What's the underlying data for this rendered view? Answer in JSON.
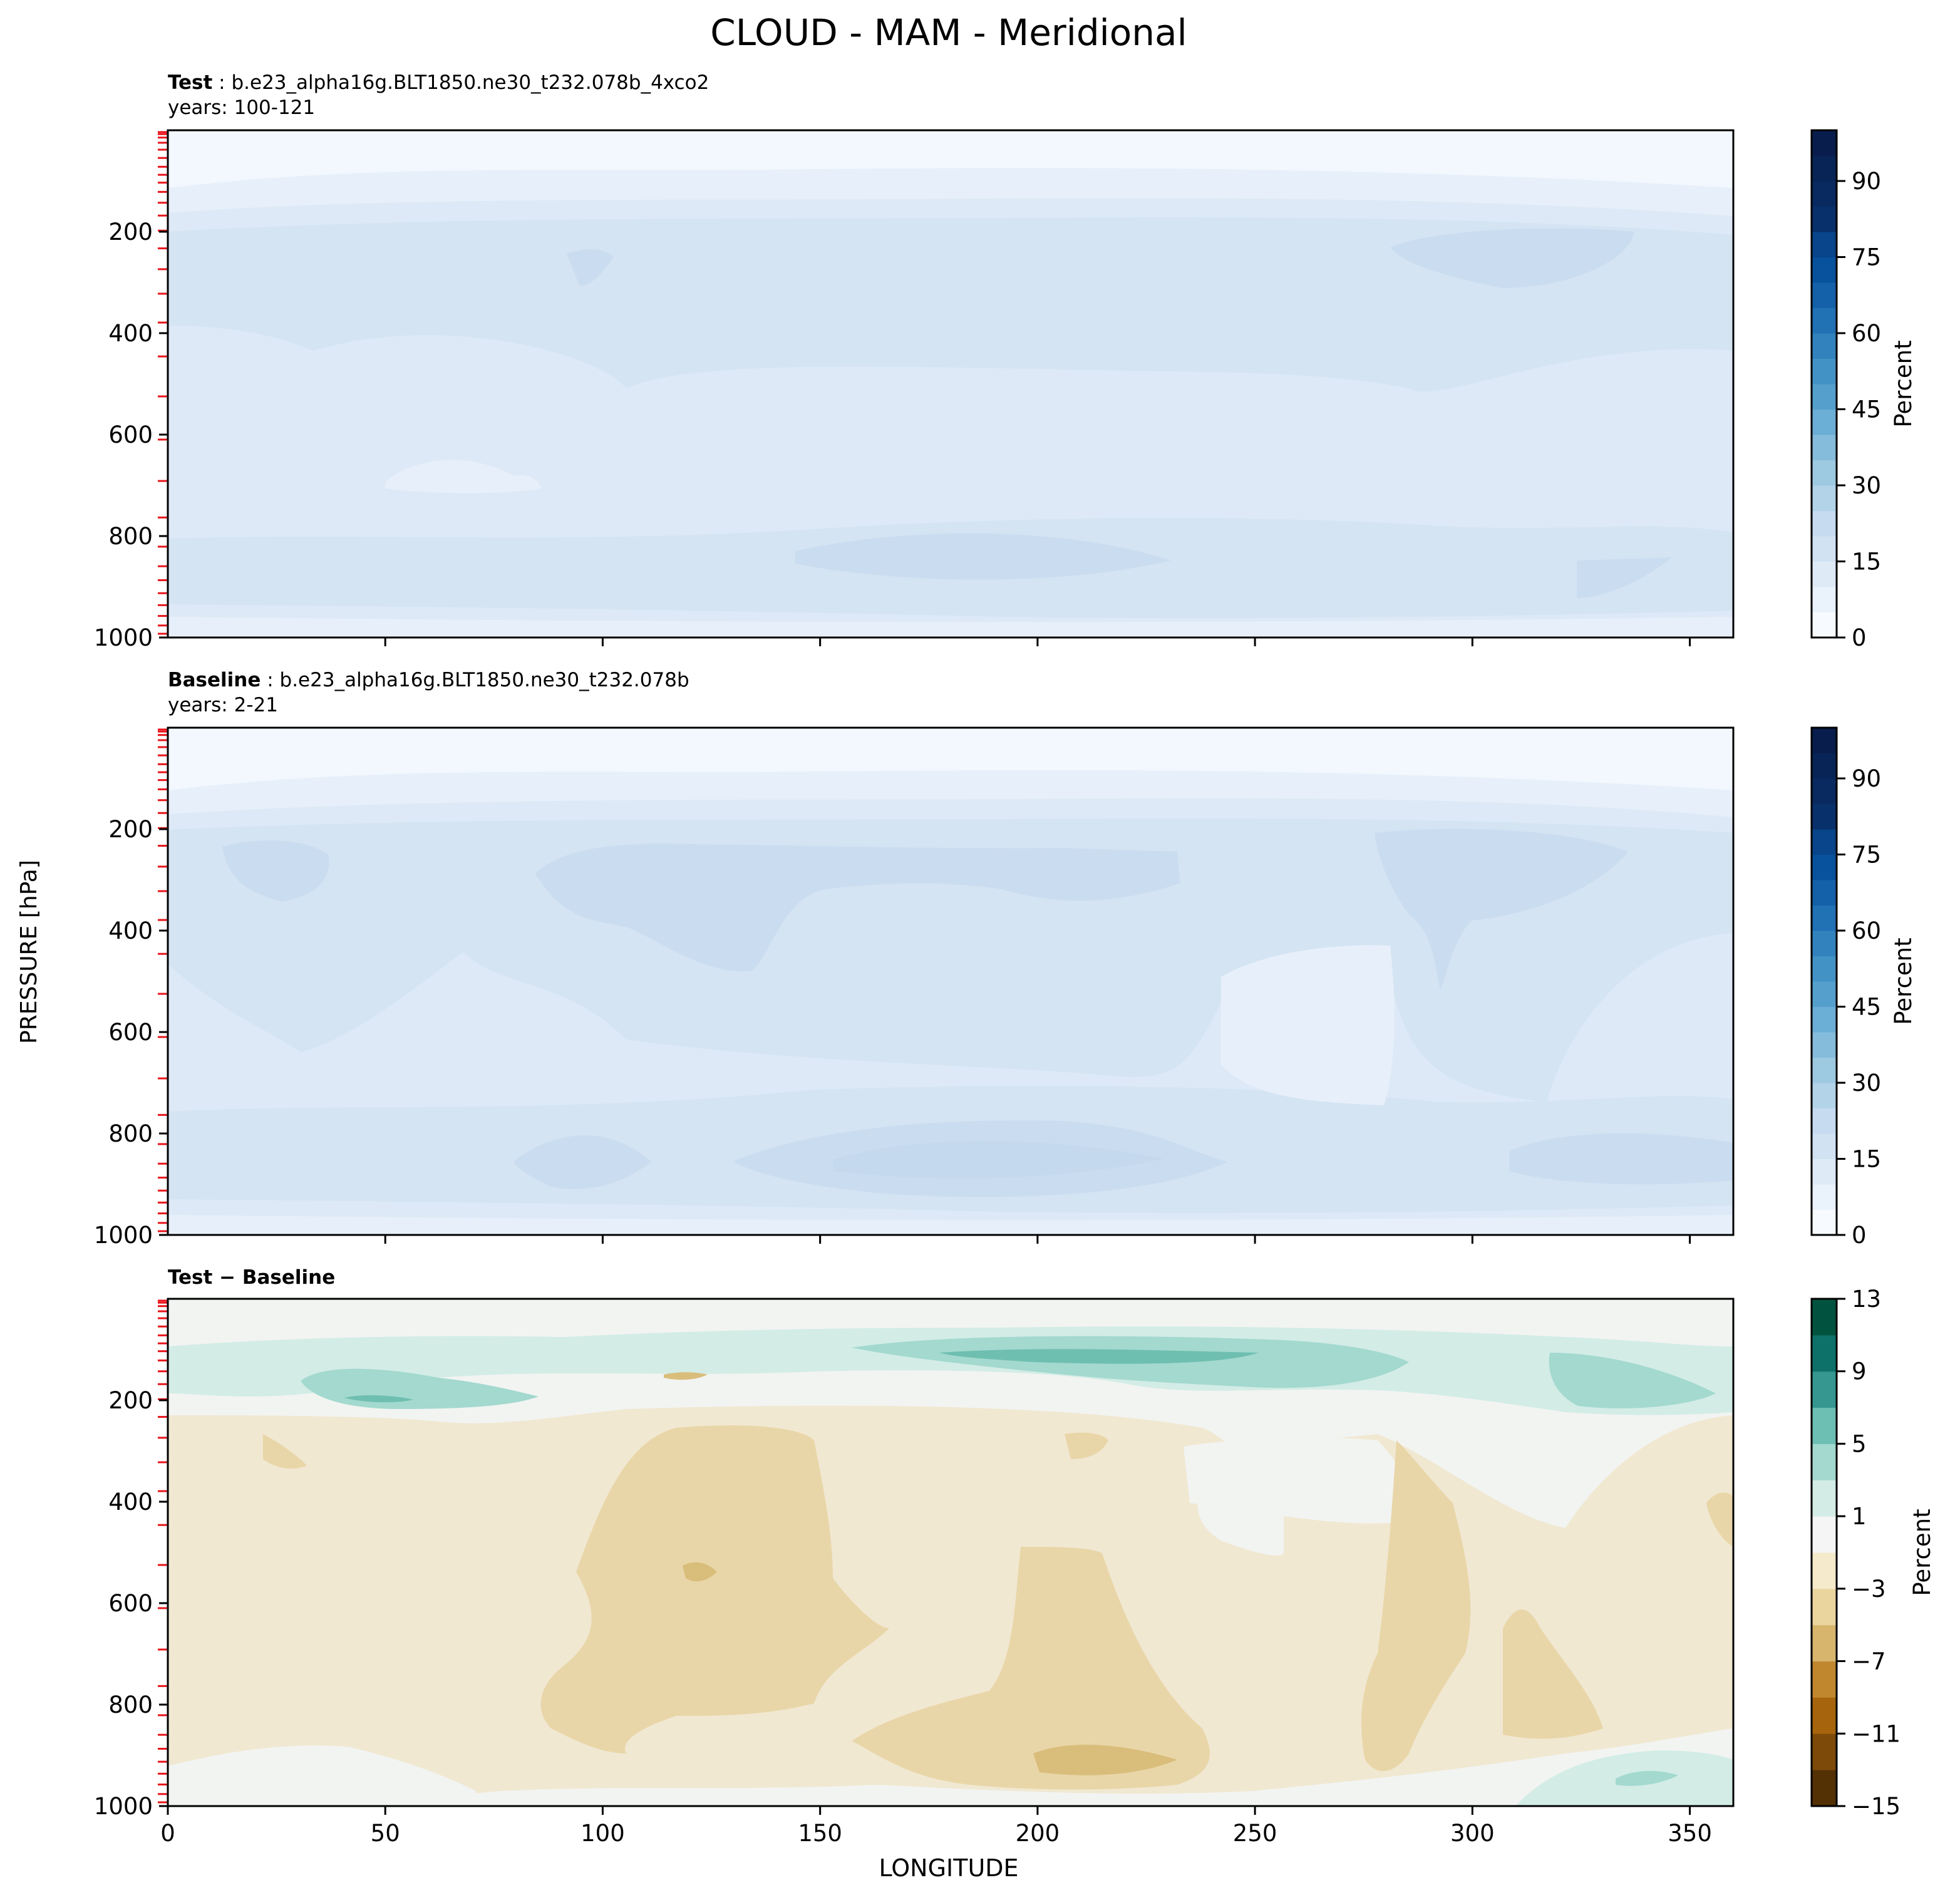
{
  "figure": {
    "title": "CLOUD - MAM - Meridional",
    "ylabel": "PRESSURE [hPa]",
    "xlabel": "LONGITUDE"
  },
  "chart_data": [
    {
      "type": "contour",
      "name": "test",
      "title_bold": "Test",
      "title_rest": " : b.e23_alpha16g.BLT1850.ne30_t232.078b_4xco2",
      "subtitle": "years: 100-121",
      "xlim": [
        0,
        360
      ],
      "ylim": [
        1000,
        0
      ],
      "x_ticks": [
        50,
        100,
        150,
        200,
        250,
        300,
        350
      ],
      "x_tick_labels_shown": false,
      "y_ticks": [
        200,
        400,
        600,
        800,
        1000
      ],
      "model_levels": [
        3.6,
        7.6,
        14.4,
        24.6,
        38.3,
        54.6,
        72.0,
        87.8,
        103.3,
        121.5,
        142.9,
        168.2,
        197.9,
        232.8,
        273.9,
        322.2,
        379.1,
        445.9,
        524.7,
        609.8,
        691.4,
        763.4,
        820.9,
        859.5,
        887.0,
        912.6,
        936.2,
        957.5,
        976.3,
        992.6
      ],
      "colorbar": {
        "label": "Percent",
        "ticks": [
          0,
          15,
          30,
          45,
          60,
          75,
          90
        ],
        "vmin": 0,
        "vmax": 100,
        "levels": [
          0,
          5,
          10,
          15,
          20,
          25,
          30,
          35,
          40,
          45,
          50,
          55,
          60,
          65,
          70,
          75,
          80,
          85,
          90,
          95,
          100
        ],
        "cmap": "Blues"
      },
      "approx_field": [
        {
          "p_range": [
            0,
            80
          ],
          "value_range": [
            0,
            5
          ]
        },
        {
          "p_range": [
            80,
            180
          ],
          "value_range": [
            5,
            15
          ]
        },
        {
          "p_range": [
            180,
            420
          ],
          "value_range": [
            15,
            25
          ]
        },
        {
          "p_range": [
            420,
            800
          ],
          "value_range": [
            10,
            15
          ]
        },
        {
          "p_range": [
            800,
            960
          ],
          "value_range": [
            15,
            25
          ]
        },
        {
          "p_range": [
            960,
            1000
          ],
          "value_range": [
            5,
            15
          ]
        }
      ]
    },
    {
      "type": "contour",
      "name": "baseline",
      "title_bold": "Baseline",
      "title_rest": " : b.e23_alpha16g.BLT1850.ne30_t232.078b",
      "subtitle": "years: 2-21",
      "xlim": [
        0,
        360
      ],
      "ylim": [
        1000,
        0
      ],
      "x_ticks": [
        50,
        100,
        150,
        200,
        250,
        300,
        350
      ],
      "x_tick_labels_shown": false,
      "y_ticks": [
        200,
        400,
        600,
        800,
        1000
      ],
      "colorbar": {
        "label": "Percent",
        "ticks": [
          0,
          15,
          30,
          45,
          60,
          75,
          90
        ],
        "vmin": 0,
        "vmax": 100,
        "levels": [
          0,
          5,
          10,
          15,
          20,
          25,
          30,
          35,
          40,
          45,
          50,
          55,
          60,
          65,
          70,
          75,
          80,
          85,
          90,
          95,
          100
        ],
        "cmap": "Blues"
      },
      "approx_field": [
        {
          "p_range": [
            0,
            80
          ],
          "value_range": [
            0,
            5
          ]
        },
        {
          "p_range": [
            80,
            180
          ],
          "value_range": [
            5,
            15
          ]
        },
        {
          "p_range": [
            180,
            450
          ],
          "value_range": [
            15,
            25
          ]
        },
        {
          "p_range": [
            450,
            780
          ],
          "value_range": [
            10,
            20
          ]
        },
        {
          "p_range": [
            780,
            960
          ],
          "value_range": [
            15,
            30
          ]
        },
        {
          "p_range": [
            960,
            1000
          ],
          "value_range": [
            5,
            15
          ]
        }
      ]
    },
    {
      "type": "contour",
      "name": "difference",
      "title_bold": "Test − Baseline",
      "title_rest": "",
      "subtitle": "",
      "xlim": [
        0,
        360
      ],
      "ylim": [
        1000,
        0
      ],
      "x_ticks": [
        0,
        50,
        100,
        150,
        200,
        250,
        300,
        350
      ],
      "x_tick_labels_shown": true,
      "y_ticks": [
        200,
        400,
        600,
        800,
        1000
      ],
      "colorbar": {
        "label": "Percent",
        "ticks": [
          13,
          9,
          5,
          1,
          -3,
          -7,
          -11,
          -15
        ],
        "vmin": -15,
        "vmax": 13,
        "levels": [
          -15,
          -13,
          -11,
          -9,
          -7,
          -5,
          -3,
          -1,
          1,
          3,
          5,
          7,
          9,
          11,
          13
        ],
        "cmap": "BrBG"
      },
      "approx_field": [
        {
          "p_range": [
            0,
            80
          ],
          "value_range": [
            -1,
            1
          ]
        },
        {
          "p_range": [
            80,
            230
          ],
          "value_range": [
            1,
            9
          ]
        },
        {
          "p_range": [
            230,
            900
          ],
          "value_range": [
            -5,
            -1
          ]
        },
        {
          "p_range": [
            900,
            1000
          ],
          "value_range": [
            -1,
            5
          ]
        }
      ]
    }
  ]
}
